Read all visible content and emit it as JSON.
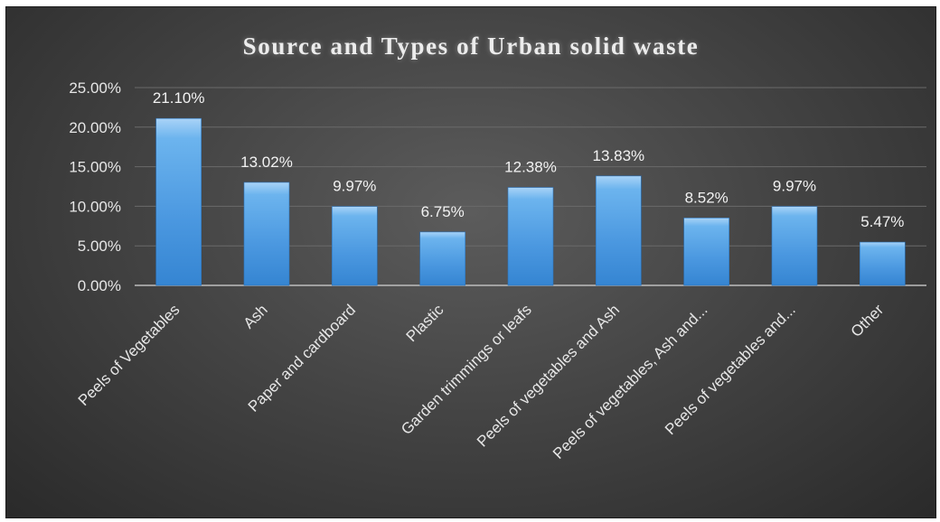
{
  "chart_data": {
    "type": "bar",
    "title": "Source and Types of Urban solid waste",
    "categories": [
      "Peels of Vegetables",
      "Ash",
      "Paper and cardboard",
      "Plastic",
      "Garden trimmings or leafs",
      "Peels of vegetables and Ash",
      "Peels of vegetables, Ash and...",
      "Peels of vegetables and...",
      "Other"
    ],
    "values": [
      21.1,
      13.02,
      9.97,
      6.75,
      12.38,
      13.83,
      8.52,
      9.97,
      5.47
    ],
    "data_labels": [
      "21.10%",
      "13.02%",
      "9.97%",
      "6.75%",
      "12.38%",
      "13.83%",
      "8.52%",
      "9.97%",
      "5.47%"
    ],
    "y_ticks": [
      "0.00%",
      "5.00%",
      "10.00%",
      "15.00%",
      "20.00%",
      "25.00%"
    ],
    "ylim": [
      0,
      25
    ],
    "xlabel": "",
    "ylabel": "",
    "grid": true,
    "legend": "none",
    "colors": {
      "bar_top": "#a9d3f7",
      "bar_mid": "#5aa6e8",
      "bar_bottom": "#2f7fcc",
      "gridline": "#6a6a6a",
      "axis": "#bdbdbd",
      "text": "#e6e6e6"
    }
  }
}
